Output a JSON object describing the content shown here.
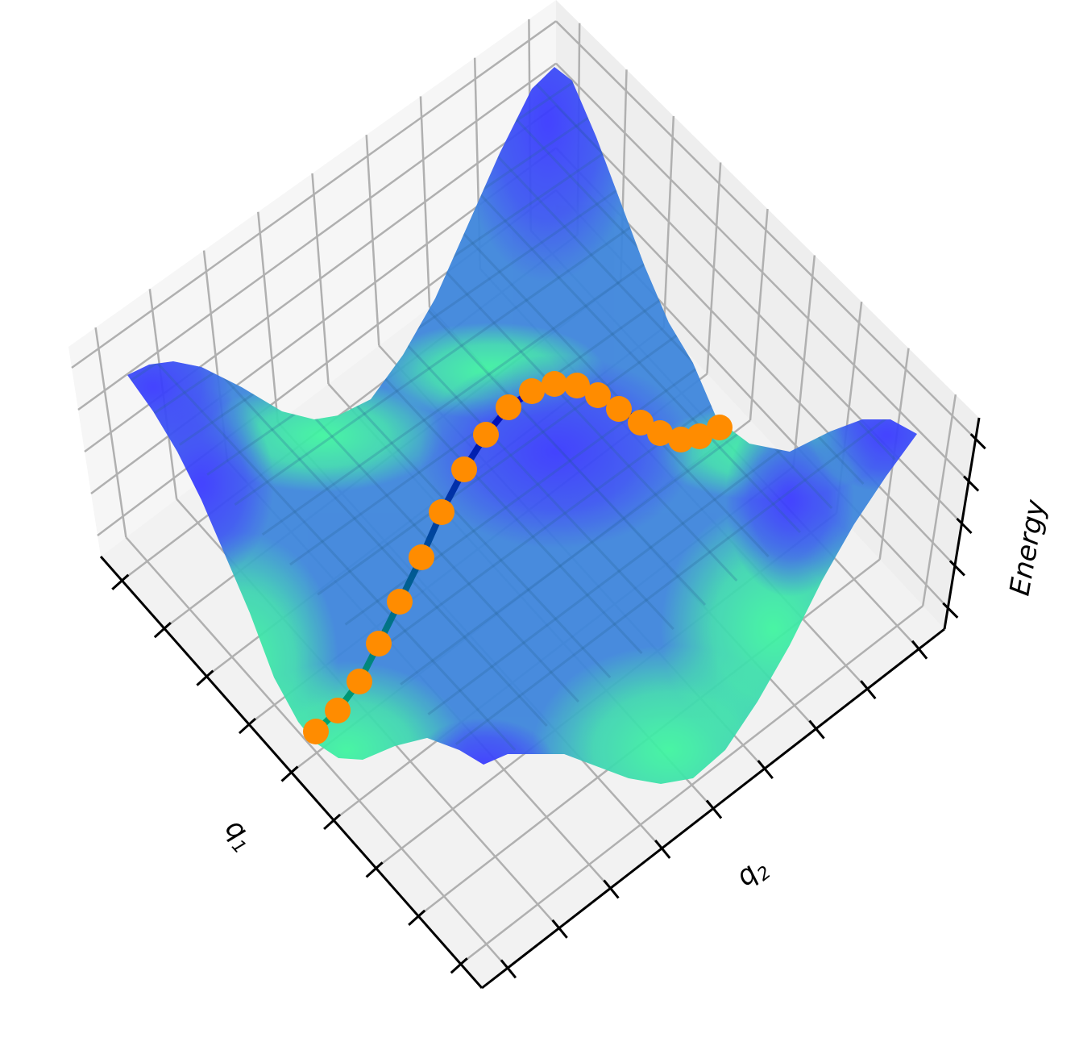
{
  "chart_data": {
    "type": "surface",
    "projection": "3d",
    "title": "",
    "xlabel": "q₁",
    "ylabel": "q₂",
    "zlabel": "Energy",
    "xlabel_base": "q",
    "xlabel_sub": "1",
    "ylabel_base": "q",
    "ylabel_sub": "2",
    "grid": true,
    "tick_labels_shown": false,
    "x_tick_count": 9,
    "y_tick_count": 9,
    "z_tick_count": 5,
    "surface_colormap": [
      "#4040ff",
      "#3f86dc",
      "#40f5a0"
    ],
    "surface_alpha": 0.95,
    "path": {
      "marker_color": "#ff8c00",
      "line_colormap": [
        "#00a86b",
        "#0000c0"
      ],
      "point_count": 20
    },
    "pane_color": "#f2f2f2",
    "grid_color": "#b0b0b0"
  }
}
